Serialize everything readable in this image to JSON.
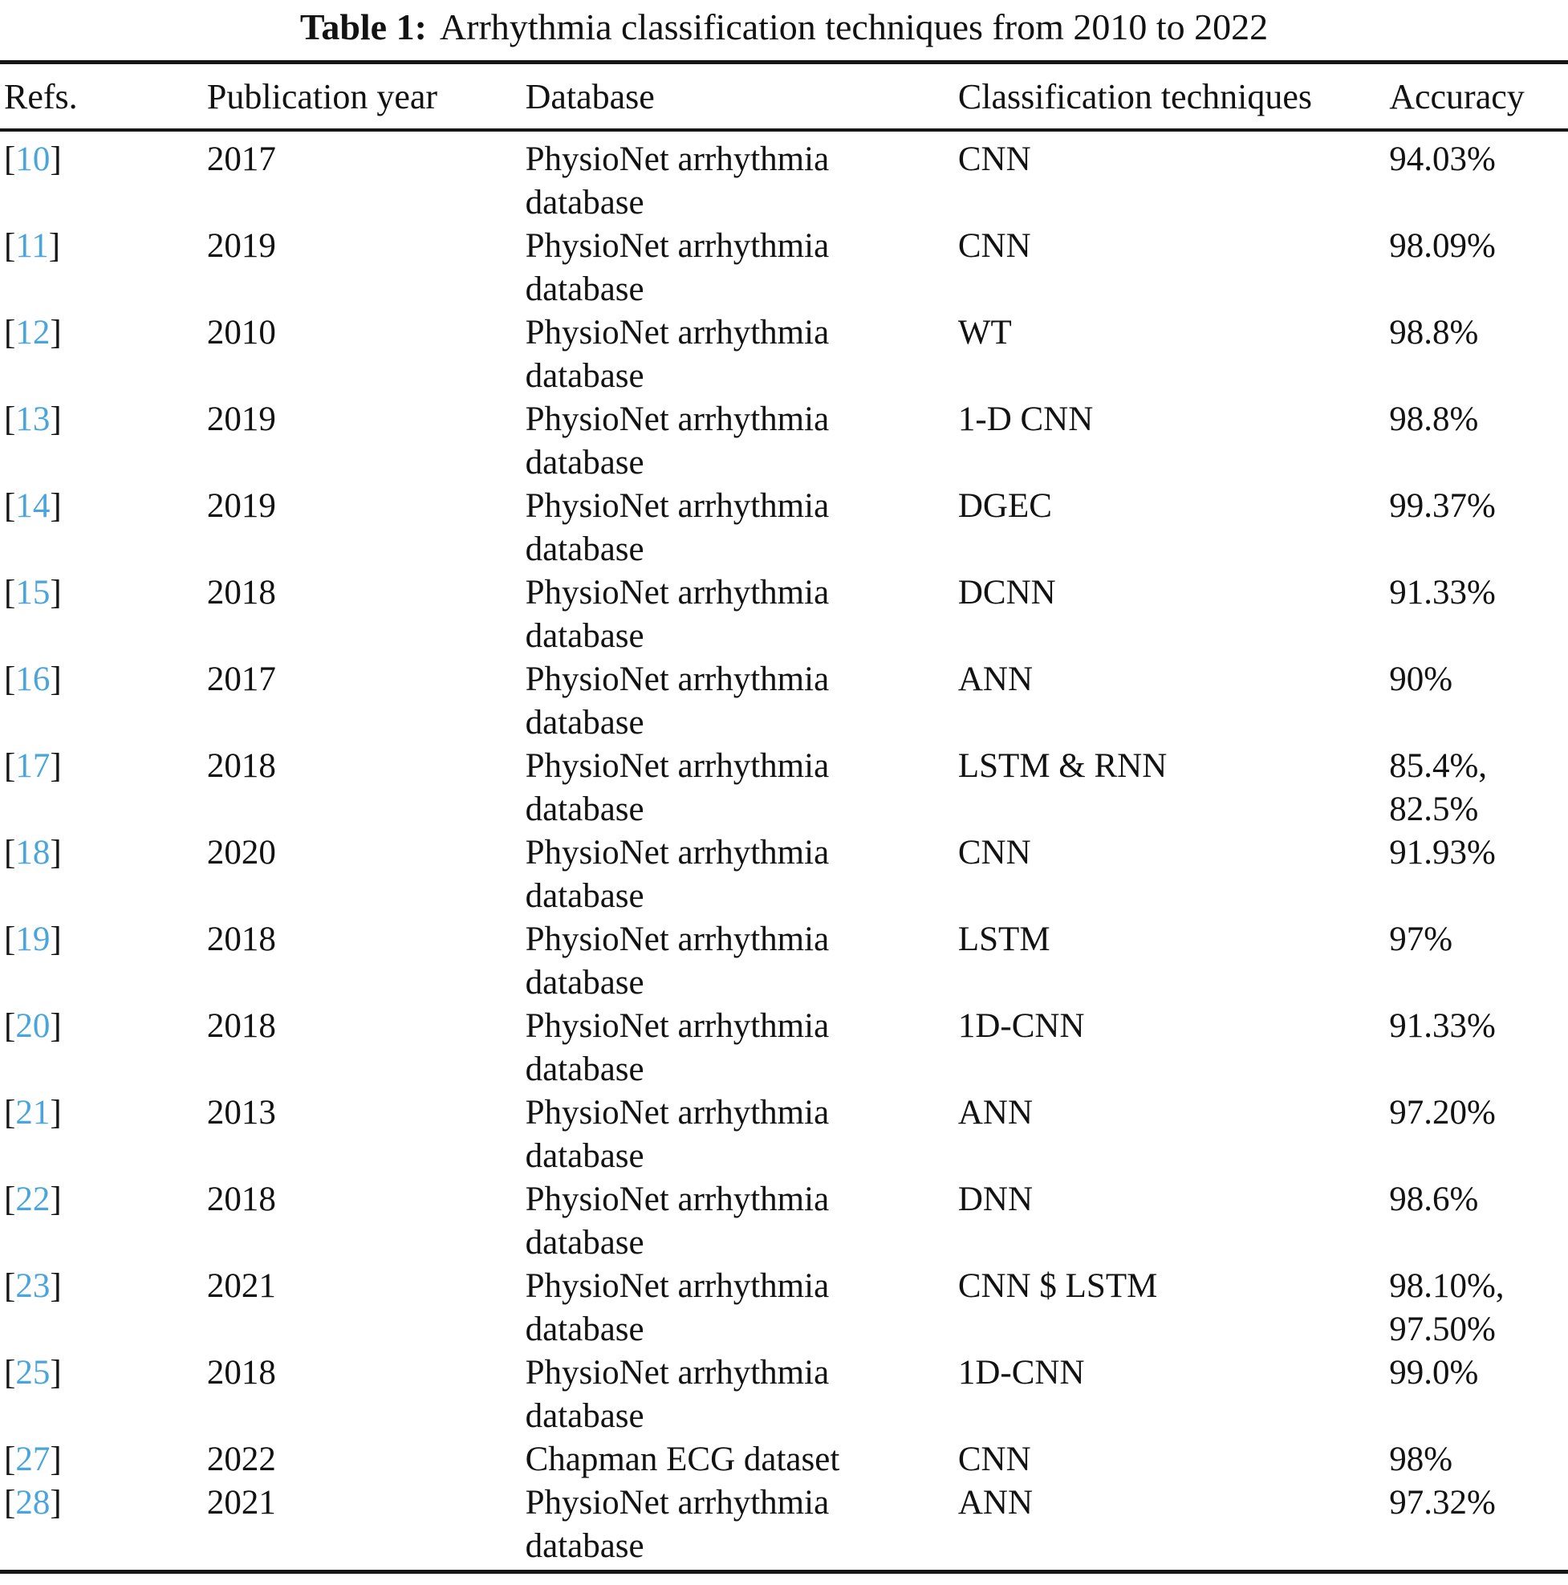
{
  "title": {
    "label": "Table 1:",
    "text": "Arrhythmia classification techniques from 2010 to 2022"
  },
  "accent_color": "#4aa5dc",
  "ink_color": "#161616",
  "table": {
    "headers": [
      "Refs.",
      "Publication year",
      "Database",
      "Classification techniques",
      "Accuracy"
    ],
    "ref_brackets": {
      "open": "[",
      "close": "]"
    },
    "rows": [
      {
        "ref": "10",
        "year": "2017",
        "database": [
          "PhysioNet arrhythmia",
          "database"
        ],
        "technique": "CNN",
        "accuracy": [
          "94.03%"
        ]
      },
      {
        "ref": "11",
        "year": "2019",
        "database": [
          "PhysioNet arrhythmia",
          "database"
        ],
        "technique": "CNN",
        "accuracy": [
          "98.09%"
        ]
      },
      {
        "ref": "12",
        "year": "2010",
        "database": [
          "PhysioNet arrhythmia",
          "database"
        ],
        "technique": "WT",
        "accuracy": [
          "98.8%"
        ]
      },
      {
        "ref": "13",
        "year": "2019",
        "database": [
          "PhysioNet arrhythmia",
          "database"
        ],
        "technique": "1-D CNN",
        "accuracy": [
          "98.8%"
        ]
      },
      {
        "ref": "14",
        "year": "2019",
        "database": [
          "PhysioNet arrhythmia",
          "database"
        ],
        "technique": "DGEC",
        "accuracy": [
          "99.37%"
        ]
      },
      {
        "ref": "15",
        "year": "2018",
        "database": [
          "PhysioNet arrhythmia",
          "database"
        ],
        "technique": "DCNN",
        "accuracy": [
          "91.33%"
        ]
      },
      {
        "ref": "16",
        "year": "2017",
        "database": [
          "PhysioNet arrhythmia",
          "database"
        ],
        "technique": "ANN",
        "accuracy": [
          "90%"
        ]
      },
      {
        "ref": "17",
        "year": "2018",
        "database": [
          "PhysioNet arrhythmia",
          "database"
        ],
        "technique": "LSTM & RNN",
        "accuracy": [
          "85.4%,",
          "82.5%"
        ]
      },
      {
        "ref": "18",
        "year": "2020",
        "database": [
          "PhysioNet arrhythmia",
          "database"
        ],
        "technique": "CNN",
        "accuracy": [
          "91.93%"
        ]
      },
      {
        "ref": "19",
        "year": "2018",
        "database": [
          "PhysioNet arrhythmia",
          "database"
        ],
        "technique": "LSTM",
        "accuracy": [
          "97%"
        ]
      },
      {
        "ref": "20",
        "year": "2018",
        "database": [
          "PhysioNet arrhythmia",
          "database"
        ],
        "technique": "1D-CNN",
        "accuracy": [
          "91.33%"
        ]
      },
      {
        "ref": "21",
        "year": "2013",
        "database": [
          "PhysioNet arrhythmia",
          "database"
        ],
        "technique": "ANN",
        "accuracy": [
          "97.20%"
        ]
      },
      {
        "ref": "22",
        "year": "2018",
        "database": [
          "PhysioNet arrhythmia",
          "database"
        ],
        "technique": "DNN",
        "accuracy": [
          "98.6%"
        ]
      },
      {
        "ref": "23",
        "year": "2021",
        "database": [
          "PhysioNet arrhythmia",
          "database"
        ],
        "technique": "CNN $ LSTM",
        "accuracy": [
          "98.10%,",
          "97.50%"
        ]
      },
      {
        "ref": "25",
        "year": "2018",
        "database": [
          "PhysioNet arrhythmia",
          "database"
        ],
        "technique": "1D-CNN",
        "accuracy": [
          "99.0%"
        ]
      },
      {
        "ref": "27",
        "year": "2022",
        "database": [
          "Chapman ECG dataset"
        ],
        "technique": "CNN",
        "accuracy": [
          "98%"
        ]
      },
      {
        "ref": "28",
        "year": "2021",
        "database": [
          "PhysioNet arrhythmia",
          "database"
        ],
        "technique": "ANN",
        "accuracy": [
          "97.32%"
        ]
      }
    ]
  }
}
